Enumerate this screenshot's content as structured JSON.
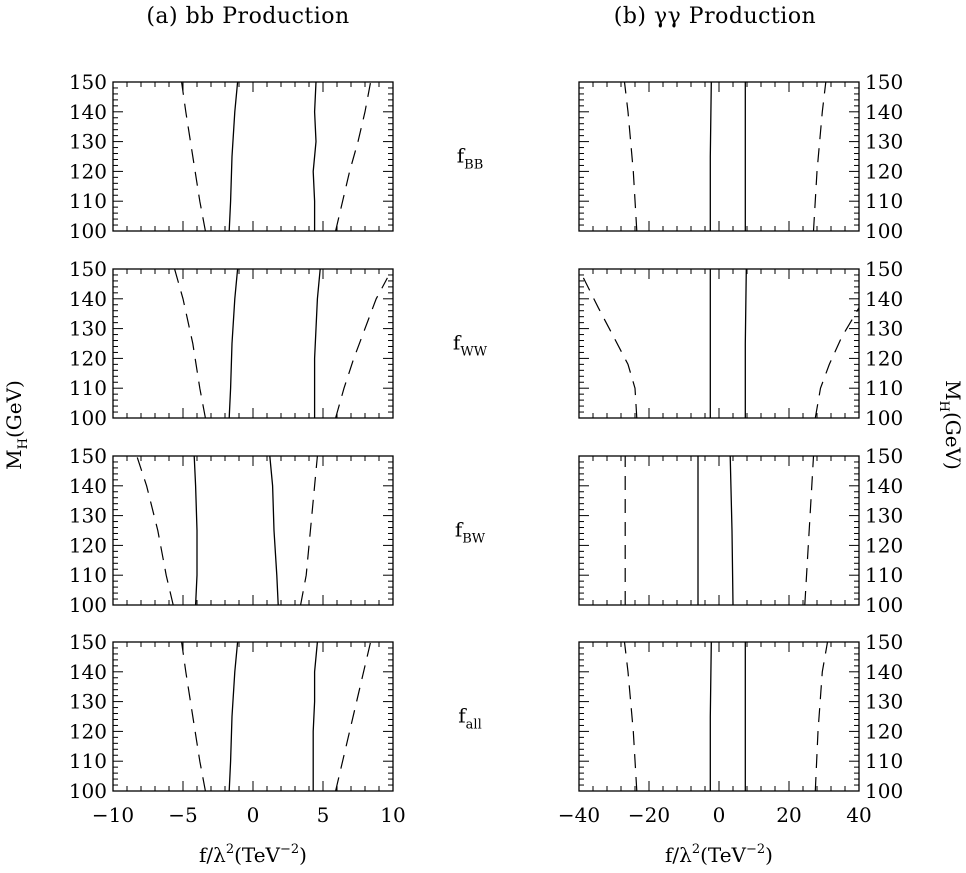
{
  "figure": {
    "left_title": "(a) bb Production",
    "right_title": "(b) γγ Production",
    "ylabel_main": "M",
    "ylabel_sub": "H",
    "ylabel_unit": "(GeV)",
    "xlabel_main": "f/λ",
    "xlabel_sup": "2",
    "xlabel_unit": "(TeV",
    "xlabel_unit_sup": "−2",
    "xlabel_close": ")"
  },
  "rows": [
    {
      "main": "f",
      "sub": "BB"
    },
    {
      "main": "f",
      "sub": "WW"
    },
    {
      "main": "f",
      "sub": "BW"
    },
    {
      "main": "f",
      "sub": "all"
    }
  ],
  "chart_data": [
    {
      "type": "line",
      "panel": "bb Production",
      "xlim": [
        -10,
        10
      ],
      "ylim": [
        100,
        150
      ],
      "xticks": [
        -10,
        -5,
        0,
        5,
        10
      ],
      "yticks": [
        100,
        110,
        120,
        130,
        140,
        150
      ],
      "rows": [
        {
          "label": "fBB",
          "solid": [
            [
              [
                -1.7,
                100
              ],
              [
                -1.6,
                110
              ],
              [
                -1.5,
                125
              ],
              [
                -1.3,
                140
              ],
              [
                -1.1,
                150
              ]
            ],
            [
              [
                4.4,
                100
              ],
              [
                4.4,
                110
              ],
              [
                4.3,
                120
              ],
              [
                4.5,
                130
              ],
              [
                4.4,
                140
              ],
              [
                4.5,
                150
              ]
            ]
          ],
          "dashed": [
            [
              [
                -3.4,
                100
              ],
              [
                -3.8,
                110
              ],
              [
                -4.3,
                125
              ],
              [
                -4.8,
                140
              ],
              [
                -5.1,
                150
              ]
            ],
            [
              [
                5.9,
                100
              ],
              [
                6.4,
                110
              ],
              [
                6.9,
                120
              ],
              [
                7.5,
                130
              ],
              [
                8.0,
                140
              ],
              [
                8.4,
                150
              ]
            ]
          ]
        },
        {
          "label": "fWW",
          "solid": [
            [
              [
                -1.7,
                100
              ],
              [
                -1.6,
                110
              ],
              [
                -1.5,
                125
              ],
              [
                -1.3,
                140
              ],
              [
                -1.1,
                150
              ]
            ],
            [
              [
                4.4,
                100
              ],
              [
                4.4,
                110
              ],
              [
                4.4,
                120
              ],
              [
                4.5,
                130
              ],
              [
                4.6,
                140
              ],
              [
                4.8,
                150
              ]
            ]
          ],
          "dashed": [
            [
              [
                -3.4,
                100
              ],
              [
                -3.8,
                110
              ],
              [
                -4.3,
                125
              ],
              [
                -5.0,
                140
              ],
              [
                -5.6,
                150
              ]
            ],
            [
              [
                5.9,
                100
              ],
              [
                6.5,
                110
              ],
              [
                7.2,
                120
              ],
              [
                8.0,
                130
              ],
              [
                8.8,
                140
              ],
              [
                9.6,
                147
              ]
            ]
          ]
        },
        {
          "label": "fBW",
          "solid": [
            [
              [
                -4.1,
                100
              ],
              [
                -4.0,
                110
              ],
              [
                -4.0,
                125
              ],
              [
                -4.1,
                140
              ],
              [
                -4.2,
                150
              ]
            ],
            [
              [
                1.8,
                100
              ],
              [
                1.7,
                110
              ],
              [
                1.5,
                125
              ],
              [
                1.4,
                140
              ],
              [
                1.2,
                150
              ]
            ]
          ],
          "dashed": [
            [
              [
                -5.7,
                100
              ],
              [
                -6.2,
                110
              ],
              [
                -6.8,
                125
              ],
              [
                -7.6,
                140
              ],
              [
                -8.3,
                150
              ]
            ],
            [
              [
                3.4,
                100
              ],
              [
                3.8,
                110
              ],
              [
                4.1,
                125
              ],
              [
                4.4,
                140
              ],
              [
                4.6,
                150
              ]
            ]
          ]
        },
        {
          "label": "fall",
          "solid": [
            [
              [
                -1.7,
                100
              ],
              [
                -1.6,
                110
              ],
              [
                -1.5,
                125
              ],
              [
                -1.3,
                140
              ],
              [
                -1.1,
                150
              ]
            ],
            [
              [
                4.3,
                100
              ],
              [
                4.3,
                110
              ],
              [
                4.3,
                120
              ],
              [
                4.4,
                130
              ],
              [
                4.4,
                140
              ],
              [
                4.6,
                150
              ]
            ]
          ],
          "dashed": [
            [
              [
                -3.4,
                100
              ],
              [
                -3.8,
                110
              ],
              [
                -4.3,
                125
              ],
              [
                -4.8,
                140
              ],
              [
                -5.1,
                150
              ]
            ],
            [
              [
                5.9,
                100
              ],
              [
                6.4,
                110
              ],
              [
                6.9,
                120
              ],
              [
                7.4,
                130
              ],
              [
                7.9,
                140
              ],
              [
                8.4,
                150
              ]
            ]
          ]
        }
      ]
    },
    {
      "type": "line",
      "panel": "γγ Production",
      "xlim": [
        -40,
        40
      ],
      "ylim": [
        100,
        150
      ],
      "xticks": [
        -40,
        -20,
        0,
        20,
        40
      ],
      "yticks": [
        100,
        110,
        120,
        130,
        140,
        150
      ],
      "rows": [
        {
          "label": "fBB",
          "solid": [
            [
              [
                -2.5,
                100
              ],
              [
                -2.5,
                125
              ],
              [
                -2.2,
                150
              ]
            ],
            [
              [
                7.5,
                100
              ],
              [
                7.5,
                125
              ],
              [
                7.5,
                150
              ]
            ]
          ],
          "dashed": [
            [
              [
                -23.5,
                100
              ],
              [
                -24.5,
                120
              ],
              [
                -26.0,
                140
              ],
              [
                -27.0,
                150
              ]
            ],
            [
              [
                27.0,
                100
              ],
              [
                28.0,
                120
              ],
              [
                29.5,
                140
              ],
              [
                30.5,
                150
              ]
            ]
          ]
        },
        {
          "label": "fWW",
          "solid": [
            [
              [
                -2.5,
                100
              ],
              [
                -2.5,
                125
              ],
              [
                -2.5,
                150
              ]
            ],
            [
              [
                7.5,
                100
              ],
              [
                7.5,
                125
              ],
              [
                7.8,
                150
              ]
            ]
          ],
          "dashed": [
            [
              [
                -23.5,
                100
              ],
              [
                -24.0,
                110
              ],
              [
                -26.0,
                118
              ],
              [
                -30.0,
                127
              ],
              [
                -34.5,
                137
              ],
              [
                -40.0,
                150
              ]
            ],
            [
              [
                27.5,
                100
              ],
              [
                29.0,
                110
              ],
              [
                31.5,
                118
              ],
              [
                35.0,
                127
              ],
              [
                38.5,
                134
              ],
              [
                40.0,
                137
              ]
            ]
          ]
        },
        {
          "label": "fBW",
          "solid": [
            [
              [
                -6.0,
                100
              ],
              [
                -6.0,
                125
              ],
              [
                -6.0,
                150
              ]
            ],
            [
              [
                4.0,
                100
              ],
              [
                3.7,
                125
              ],
              [
                3.2,
                150
              ]
            ]
          ],
          "dashed": [
            [
              [
                -26.8,
                100
              ],
              [
                -26.8,
                125
              ],
              [
                -26.8,
                150
              ]
            ],
            [
              [
                24.5,
                100
              ],
              [
                25.5,
                120
              ],
              [
                26.5,
                140
              ],
              [
                27.0,
                150
              ]
            ]
          ]
        },
        {
          "label": "fall",
          "solid": [
            [
              [
                -2.5,
                100
              ],
              [
                -2.5,
                125
              ],
              [
                -2.2,
                150
              ]
            ],
            [
              [
                7.5,
                100
              ],
              [
                7.5,
                125
              ],
              [
                7.5,
                150
              ]
            ]
          ],
          "dashed": [
            [
              [
                -23.5,
                100
              ],
              [
                -24.5,
                120
              ],
              [
                -26.0,
                140
              ],
              [
                -27.0,
                150
              ]
            ],
            [
              [
                27.5,
                100
              ],
              [
                28.3,
                120
              ],
              [
                29.5,
                140
              ],
              [
                31.0,
                150
              ]
            ]
          ]
        }
      ]
    }
  ]
}
